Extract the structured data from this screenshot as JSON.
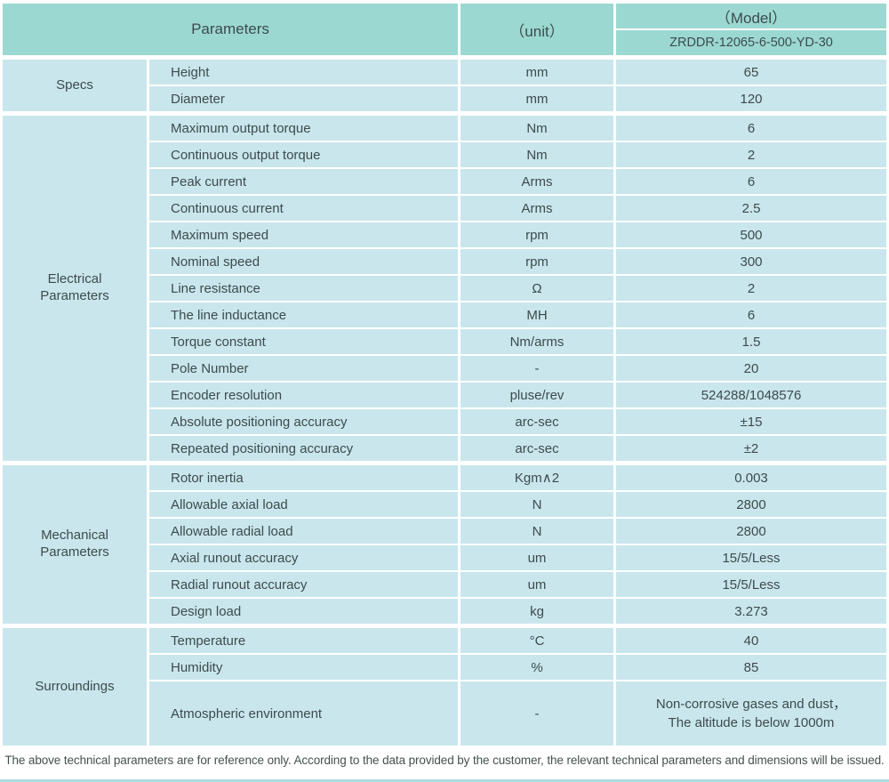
{
  "page": {
    "footer": "The above technical parameters are for reference only. According to the data provided by the customer, the relevant technical parameters and dimensions will be issued."
  },
  "table": {
    "colors": {
      "header_bg": "#9cd8d2",
      "cell_bg": "#c9e6ec",
      "text": "#3c4b4e"
    },
    "header": {
      "parameters_label": "Parameters",
      "unit_label": "（unit）",
      "model_label": "（Model）",
      "model_value": "ZRDDR-12065-6-500-YD-30"
    },
    "sections": [
      {
        "label": "Specs",
        "rows": [
          {
            "parameter": "Height",
            "unit": "mm",
            "value": "65"
          },
          {
            "parameter": "Diameter",
            "unit": "mm",
            "value": "120"
          }
        ]
      },
      {
        "label": "Electrical Parameters",
        "rows": [
          {
            "parameter": "Maximum output torque",
            "unit": "Nm",
            "value": "6"
          },
          {
            "parameter": "Continuous output torque",
            "unit": "Nm",
            "value": "2"
          },
          {
            "parameter": "Peak current",
            "unit": "Arms",
            "value": "6"
          },
          {
            "parameter": "Continuous current",
            "unit": "Arms",
            "value": "2.5"
          },
          {
            "parameter": "Maximum speed",
            "unit": "rpm",
            "value": "500"
          },
          {
            "parameter": "Nominal speed",
            "unit": "rpm",
            "value": "300"
          },
          {
            "parameter": "Line resistance",
            "unit": "Ω",
            "value": "2"
          },
          {
            "parameter": "The line inductance",
            "unit": "MH",
            "value": "6"
          },
          {
            "parameter": "Torque constant",
            "unit": "Nm/arms",
            "value": "1.5"
          },
          {
            "parameter": "Pole Number",
            "unit": "-",
            "value": "20"
          },
          {
            "parameter": "Encoder resolution",
            "unit": "pluse/rev",
            "value": "524288/1048576"
          },
          {
            "parameter": "Absolute positioning accuracy",
            "unit": "arc-sec",
            "value": "±15"
          },
          {
            "parameter": "Repeated positioning accuracy",
            "unit": "arc-sec",
            "value": "±2"
          }
        ]
      },
      {
        "label": "Mechanical Parameters",
        "rows": [
          {
            "parameter": "Rotor inertia",
            "unit": "Kgm∧2",
            "value": "0.003"
          },
          {
            "parameter": "Allowable axial load",
            "unit": "N",
            "value": "2800"
          },
          {
            "parameter": "Allowable radial load",
            "unit": "N",
            "value": "2800"
          },
          {
            "parameter": "Axial runout accuracy",
            "unit": "um",
            "value": "15/5/Less"
          },
          {
            "parameter": "Radial runout accuracy",
            "unit": "um",
            "value": "15/5/Less"
          },
          {
            "parameter": "Design load",
            "unit": "kg",
            "value": "3.273"
          }
        ]
      },
      {
        "label": "Surroundings",
        "rows": [
          {
            "parameter": "Temperature",
            "unit": "°C",
            "value": "40"
          },
          {
            "parameter": "Humidity",
            "unit": "%",
            "value": "85"
          },
          {
            "parameter": "Atmospheric environment",
            "unit": "-",
            "value": "Non-corrosive gases and dust，\nThe altitude is below 1000m"
          }
        ]
      }
    ]
  }
}
